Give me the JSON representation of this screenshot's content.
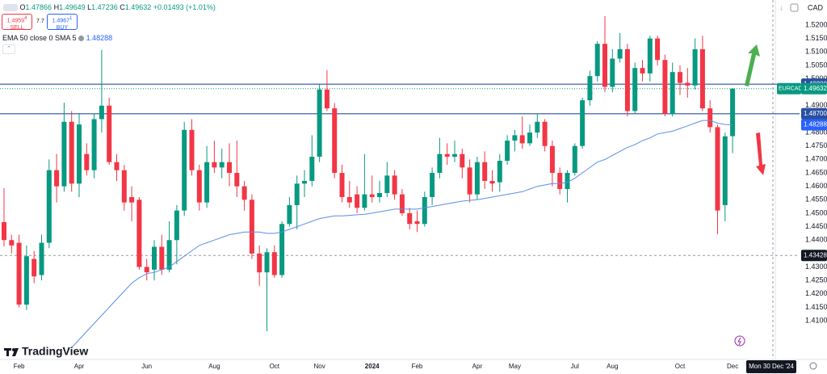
{
  "chart_data": {
    "type": "candlestick",
    "ohlc": [
      "O",
      "1.47866",
      "H",
      "1.49649",
      "L",
      "1.47236",
      "C",
      "1.49632",
      "+0.01493 (+1.01%)"
    ],
    "sell": {
      "price": "1.4959",
      "pip": "4",
      "label": "SELL"
    },
    "spread": "7.7",
    "buy": {
      "price": "1.4967",
      "pip": "1",
      "label": "BUY"
    },
    "currency": "CAD",
    "logo": "TradingView",
    "categories": [
      null,
      null,
      "Feb",
      null,
      null,
      null,
      null,
      null,
      null,
      null,
      "Apr",
      null,
      null,
      null,
      null,
      null,
      null,
      null,
      null,
      "Jun",
      null,
      null,
      null,
      null,
      null,
      null,
      null,
      null,
      "Aug",
      null,
      null,
      null,
      null,
      null,
      null,
      null,
      "Oct",
      null,
      null,
      null,
      null,
      null,
      "Nov",
      null,
      null,
      null,
      null,
      null,
      null,
      "2024",
      null,
      null,
      null,
      null,
      null,
      "Feb",
      null,
      null,
      null,
      null,
      null,
      null,
      null,
      "Apr",
      null,
      null,
      null,
      null,
      "May",
      null,
      null,
      null,
      null,
      null,
      null,
      null,
      "Jul",
      null,
      null,
      null,
      null,
      "Aug",
      null,
      null,
      null,
      null,
      null,
      null,
      null,
      null,
      "Oct",
      null,
      null,
      null,
      null,
      null,
      null,
      "Dec"
    ],
    "series": [
      {
        "name": "EURCAD",
        "up_color": "#089981",
        "down_color": "#f23645",
        "open": [
          1.4467,
          1.44,
          1.439,
          1.416,
          1.433,
          1.427,
          1.439,
          1.466,
          1.46,
          1.484,
          1.461,
          1.472,
          1.466,
          1.485,
          1.49,
          1.469,
          1.466,
          1.456,
          1.455,
          1.43,
          1.429,
          1.4375,
          1.429,
          1.44,
          1.451,
          1.481,
          1.466,
          1.454,
          1.469,
          1.467,
          1.469,
          1.465,
          1.46,
          1.455,
          1.435,
          1.428,
          1.4355,
          1.427,
          1.446,
          1.453,
          1.461,
          1.462,
          1.471,
          1.496,
          1.489,
          1.465,
          1.456,
          1.457,
          1.452,
          1.457,
          1.456,
          1.4575,
          1.464,
          1.457,
          1.45,
          1.447,
          1.446,
          1.456,
          1.465,
          1.472,
          1.471,
          1.472,
          1.467,
          1.457,
          1.469,
          1.462,
          1.4615,
          1.4695,
          1.477,
          1.479,
          1.476,
          1.48,
          1.484,
          1.475,
          1.465,
          1.459,
          1.465,
          1.475,
          1.492,
          1.501,
          1.513,
          1.497,
          1.5075,
          1.511,
          1.488,
          1.504,
          1.502,
          1.515,
          1.507,
          1.487,
          1.5025,
          1.4985,
          1.4975,
          1.511,
          1.489,
          1.482,
          1.453,
          1.47866
        ],
        "high": [
          1.4593,
          1.442,
          1.442,
          1.438,
          1.436,
          1.442,
          1.47,
          1.472,
          1.4911,
          1.488,
          1.487,
          1.476,
          1.487,
          1.5107,
          1.493,
          1.472,
          1.468,
          1.46,
          1.456,
          1.433,
          1.44,
          1.442,
          1.447,
          1.453,
          1.484,
          1.485,
          1.468,
          1.475,
          1.477,
          1.474,
          1.476,
          1.477,
          1.462,
          1.457,
          1.438,
          1.437,
          1.438,
          1.447,
          1.456,
          1.464,
          1.466,
          1.479,
          1.498,
          1.5032,
          1.491,
          1.468,
          1.462,
          1.46,
          1.472,
          1.464,
          1.462,
          1.469,
          1.466,
          1.459,
          1.452,
          1.451,
          1.458,
          1.467,
          1.478,
          1.476,
          1.477,
          1.474,
          1.47,
          1.471,
          1.473,
          1.466,
          1.472,
          1.479,
          1.481,
          1.486,
          1.483,
          1.487,
          1.485,
          1.477,
          1.467,
          1.466,
          1.476,
          1.493,
          1.503,
          1.514,
          1.5233,
          1.511,
          1.517,
          1.513,
          1.506,
          1.507,
          1.516,
          1.516,
          1.509,
          1.506,
          1.505,
          1.504,
          1.515,
          1.516,
          1.492,
          1.483,
          1.48,
          1.49649
        ],
        "low": [
          1.4376,
          1.435,
          1.415,
          1.414,
          1.424,
          1.425,
          1.437,
          1.454,
          1.458,
          1.458,
          1.456,
          1.464,
          1.463,
          1.48,
          1.468,
          1.462,
          1.451,
          1.447,
          1.429,
          1.425,
          1.425,
          1.427,
          1.428,
          1.431,
          1.449,
          1.464,
          1.451,
          1.452,
          1.465,
          1.463,
          1.46,
          1.456,
          1.451,
          1.433,
          1.423,
          1.4061,
          1.426,
          1.426,
          1.445,
          1.444,
          1.456,
          1.46,
          1.469,
          1.488,
          1.463,
          1.454,
          1.452,
          1.45,
          1.451,
          1.454,
          1.454,
          1.456,
          1.455,
          1.449,
          1.444,
          1.443,
          1.445,
          1.453,
          1.463,
          1.468,
          1.469,
          1.463,
          1.454,
          1.455,
          1.459,
          1.458,
          1.458,
          1.468,
          1.473,
          1.474,
          1.475,
          1.478,
          1.473,
          1.46,
          1.457,
          1.454,
          1.464,
          1.474,
          1.49,
          1.499,
          1.495,
          1.495,
          1.506,
          1.486,
          1.487,
          1.499,
          1.499,
          1.505,
          1.486,
          1.486,
          1.494,
          1.493,
          1.496,
          1.488,
          1.48,
          1.4422,
          1.447,
          1.47236
        ],
        "close": [
          1.44,
          1.438,
          1.416,
          1.434,
          1.4265,
          1.439,
          1.466,
          1.46,
          1.484,
          1.461,
          1.483,
          1.466,
          1.485,
          1.49,
          1.469,
          1.466,
          1.454,
          1.454,
          1.43,
          1.428,
          1.4375,
          1.429,
          1.44,
          1.451,
          1.481,
          1.466,
          1.454,
          1.469,
          1.467,
          1.469,
          1.465,
          1.46,
          1.455,
          1.435,
          1.428,
          1.4355,
          1.427,
          1.446,
          1.453,
          1.461,
          1.462,
          1.471,
          1.496,
          1.489,
          1.465,
          1.456,
          1.454,
          1.452,
          1.457,
          1.456,
          1.4575,
          1.464,
          1.457,
          1.45,
          1.446,
          1.446,
          1.456,
          1.465,
          1.472,
          1.471,
          1.472,
          1.467,
          1.457,
          1.469,
          1.462,
          1.461,
          1.4695,
          1.477,
          1.479,
          1.476,
          1.48,
          1.484,
          1.475,
          1.465,
          1.459,
          1.465,
          1.475,
          1.492,
          1.501,
          1.513,
          1.497,
          1.5075,
          1.511,
          1.488,
          1.504,
          1.502,
          1.515,
          1.507,
          1.487,
          1.5025,
          1.4985,
          1.4975,
          1.511,
          1.489,
          1.482,
          1.451,
          1.4786,
          1.49632
        ]
      }
    ],
    "ema": {
      "name": "EMA 50 close 0 SMA 5",
      "color": "#5b8ee6",
      "last": {
        "value": 1.48288,
        "label": "1.48288"
      },
      "values": [
        null,
        null,
        null,
        null,
        null,
        null,
        null,
        null,
        null,
        1.4,
        1.403,
        1.406,
        1.409,
        1.412,
        1.415,
        1.418,
        1.421,
        1.424,
        1.426,
        1.4275,
        1.428,
        1.429,
        1.43,
        1.432,
        1.434,
        1.436,
        1.438,
        1.439,
        1.44,
        1.441,
        1.442,
        1.4425,
        1.443,
        1.443,
        1.443,
        1.4425,
        1.4425,
        1.443,
        1.444,
        1.445,
        1.446,
        1.447,
        1.448,
        1.4485,
        1.449,
        1.449,
        1.4492,
        1.4494,
        1.4496,
        1.45,
        1.4505,
        1.451,
        1.4515,
        1.4515,
        1.4515,
        1.4515,
        1.452,
        1.4525,
        1.453,
        1.4535,
        1.454,
        1.4545,
        1.4548,
        1.455,
        1.4555,
        1.456,
        1.4565,
        1.457,
        1.4575,
        1.458,
        1.459,
        1.46,
        1.4605,
        1.461,
        1.461,
        1.4615,
        1.463,
        1.465,
        1.467,
        1.469,
        1.47,
        1.4715,
        1.473,
        1.4745,
        1.4755,
        1.477,
        1.478,
        1.4795,
        1.48,
        1.4805,
        1.4815,
        1.4825,
        1.4835,
        1.4845,
        1.4845,
        1.4835,
        1.483,
        1.48288
      ]
    },
    "hlines": [
      {
        "value": 1.498,
        "label": "1.49800",
        "color": "#2a4fa0"
      },
      {
        "value": 1.487,
        "label": "1.48700",
        "color": "#2a4fa0"
      }
    ],
    "last_price": {
      "name": "EURCAD",
      "value": 1.49632,
      "label": "1.49632",
      "color": "#089981"
    },
    "crosshair": {
      "value": 1.43428,
      "label": "1.43428",
      "date": "Mon 30 Dec '24"
    },
    "ylim": [
      1.3956,
      1.5293
    ],
    "yticks": [
      {
        "value": 1.41,
        "label": "1.41000"
      },
      {
        "value": 1.415,
        "label": "1.41500"
      },
      {
        "value": 1.42,
        "label": "1.42000"
      },
      {
        "value": 1.425,
        "label": "1.42500"
      },
      {
        "value": 1.43,
        "label": "1.43000"
      },
      {
        "value": 1.435,
        "label": "1.43500"
      },
      {
        "value": 1.44,
        "label": "1.44000"
      },
      {
        "value": 1.445,
        "label": "1.44500"
      },
      {
        "value": 1.45,
        "label": "1.45000"
      },
      {
        "value": 1.455,
        "label": "1.45500"
      },
      {
        "value": 1.46,
        "label": "1.46000"
      },
      {
        "value": 1.465,
        "label": "1.46500"
      },
      {
        "value": 1.47,
        "label": "1.47000"
      },
      {
        "value": 1.475,
        "label": "1.47500"
      },
      {
        "value": 1.48,
        "label": "1.48000"
      },
      {
        "value": 1.485,
        "label": "1.48500"
      },
      {
        "value": 1.49,
        "label": "1.49000"
      },
      {
        "value": 1.495,
        "label": "1.49500"
      },
      {
        "value": 1.5,
        "label": "1.50000"
      },
      {
        "value": 1.505,
        "label": "1.50500"
      },
      {
        "value": 1.51,
        "label": "1.51000"
      },
      {
        "value": 1.515,
        "label": "1.51500"
      },
      {
        "value": 1.52,
        "label": "1.52000"
      }
    ],
    "grid": false
  }
}
